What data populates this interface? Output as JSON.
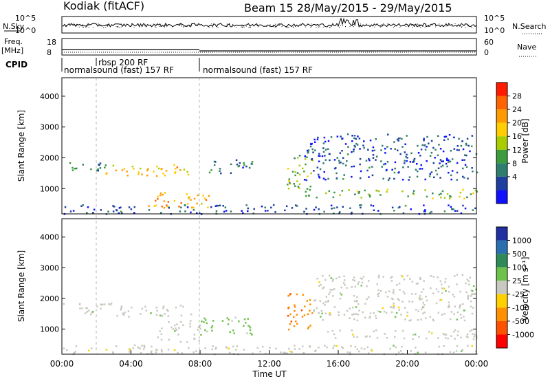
{
  "header": {
    "station": "Kodiak (fitACF)",
    "beam_date": "Beam 15 28/May/2015 - 29/May/2015"
  },
  "noise_panel": {
    "left_label": "N.Sky",
    "right_label": "N.Search",
    "left_ticks": [
      "10^5",
      "10^0"
    ],
    "right_ticks": [
      "10^5",
      "10^0"
    ]
  },
  "freq_panel": {
    "left_label_1": "Freq.",
    "left_label_2": "[MHz]",
    "right_label": "Nave",
    "left_ticks": [
      "18",
      "8"
    ],
    "right_ticks": [
      "60",
      "0"
    ]
  },
  "cpid_panel": {
    "label": "CPID",
    "segments": [
      {
        "text": "normalsound (fast) 157 RF",
        "start_hour": 0
      },
      {
        "text": "rbsp 200 RF",
        "start_hour": 2
      },
      {
        "text": "normalsound (fast) 157 RF",
        "start_hour": 8
      }
    ]
  },
  "power_panel": {
    "ylabel": "Slant Range [km]",
    "yticks": [
      "1000",
      "2000",
      "3000",
      "4000"
    ],
    "colorbar_label": "Power [dB]",
    "colorbar_ticks": [
      "28",
      "24",
      "20",
      "16",
      "12",
      "8",
      "4"
    ],
    "colorbar_colors": [
      "#ff1a00",
      "#ff6400",
      "#ff9b00",
      "#ffcd00",
      "#aacd00",
      "#3c9b3c",
      "#2e7d6e",
      "#1f3fa0",
      "#1010ff"
    ]
  },
  "velocity_panel": {
    "ylabel": "Slant Range [km]",
    "yticks": [
      "1000",
      "2000",
      "3000",
      "4000"
    ],
    "colorbar_label": "Velocity [m s⁻¹]",
    "colorbar_ticks": [
      "1000",
      "500",
      "100",
      "25",
      "-25",
      "-100",
      "-500",
      "-1000"
    ],
    "colorbar_colors": [
      "#2030a0",
      "#2a6fb0",
      "#2e8b57",
      "#6cc24a",
      "#c8c8c0",
      "#ffd000",
      "#ff9000",
      "#ff5000",
      "#ff0000"
    ]
  },
  "xaxis": {
    "label": "Time UT",
    "ticks": [
      "00:00",
      "04:00",
      "08:00",
      "12:00",
      "16:00",
      "20:00",
      "00:00"
    ]
  },
  "chart_data": [
    {
      "type": "heatmap",
      "title": "Power",
      "xlabel": "Time UT",
      "ylabel": "Slant Range [km]",
      "xlim": [
        0,
        24
      ],
      "ylim": [
        180,
        4600
      ],
      "clim": [
        0,
        32
      ],
      "scatter_regions": [
        {
          "t": [
            0,
            2.5
          ],
          "r": [
            1550,
            1900
          ],
          "v": 10
        },
        {
          "t": [
            2.5,
            7.5
          ],
          "r": [
            1400,
            1800
          ],
          "v": 20
        },
        {
          "t": [
            4.5,
            8.5
          ],
          "r": [
            400,
            900
          ],
          "v": 22
        },
        {
          "t": [
            8.5,
            11
          ],
          "r": [
            1500,
            2000
          ],
          "v": 8
        },
        {
          "t": [
            13,
            14.5
          ],
          "r": [
            1000,
            2200
          ],
          "v": 14
        },
        {
          "t": [
            14,
            24
          ],
          "r": [
            700,
            1000
          ],
          "v": 14
        },
        {
          "t": [
            14,
            24
          ],
          "r": [
            1300,
            2800
          ],
          "v": 6
        },
        {
          "t": [
            0,
            24
          ],
          "r": [
            200,
            500
          ],
          "v": 6
        }
      ]
    },
    {
      "type": "heatmap",
      "title": "Velocity",
      "xlabel": "Time UT",
      "ylabel": "Slant Range [km]",
      "xlim": [
        0,
        24
      ],
      "ylim": [
        180,
        4600
      ],
      "clim": [
        -1000,
        1000
      ],
      "scatter_regions": [
        {
          "t": [
            0,
            3
          ],
          "r": [
            1500,
            1900
          ],
          "v": 0
        },
        {
          "t": [
            3,
            7.5
          ],
          "r": [
            1400,
            1800
          ],
          "v": 0
        },
        {
          "t": [
            5.5,
            8
          ],
          "r": [
            600,
            1300
          ],
          "v": 80
        },
        {
          "t": [
            8,
            11
          ],
          "r": [
            800,
            1400
          ],
          "v": 150
        },
        {
          "t": [
            13,
            14.5
          ],
          "r": [
            1000,
            2200
          ],
          "v": -500
        },
        {
          "t": [
            14.5,
            24
          ],
          "r": [
            700,
            1000
          ],
          "v": 0
        },
        {
          "t": [
            14.5,
            24
          ],
          "r": [
            1300,
            2800
          ],
          "v": 0
        },
        {
          "t": [
            0,
            24
          ],
          "r": [
            200,
            500
          ],
          "v": 0
        }
      ]
    }
  ]
}
